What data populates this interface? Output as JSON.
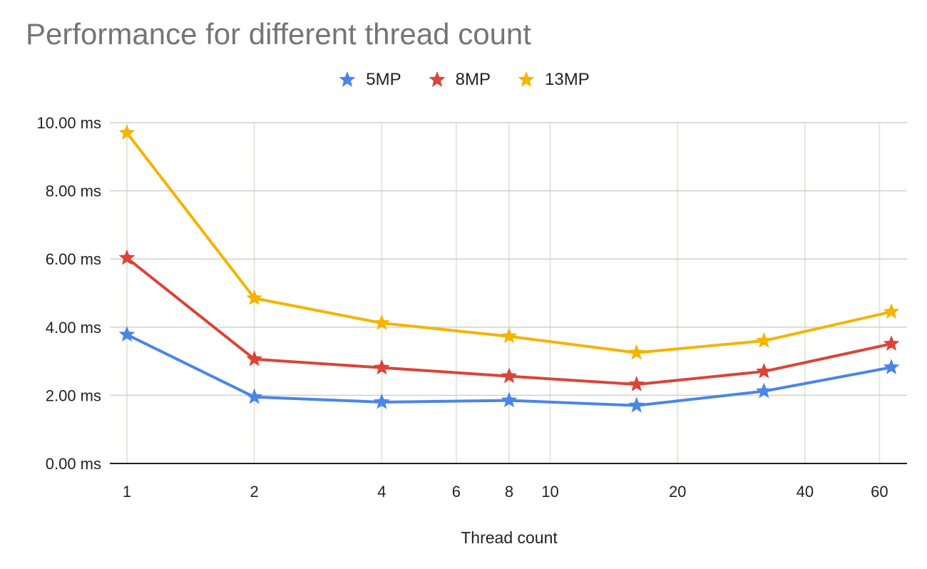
{
  "chart_data": {
    "type": "line",
    "title": "Performance for different thread count",
    "xlabel": "Thread count",
    "ylabel": "",
    "x_scale": "log",
    "x": [
      1,
      2,
      4,
      8,
      16,
      32,
      64
    ],
    "x_ticks": [
      1,
      2,
      4,
      6,
      8,
      10,
      20,
      40,
      60
    ],
    "x_tick_labels": [
      "1",
      "2",
      "4",
      "6",
      "8",
      "10",
      "20",
      "40",
      "60"
    ],
    "ylim": [
      0,
      10
    ],
    "y_ticks": [
      0,
      2,
      4,
      6,
      8,
      10
    ],
    "y_tick_labels": [
      "0.00 ms",
      "2.00 ms",
      "4.00 ms",
      "6.00 ms",
      "8.00 ms",
      "10.00 ms"
    ],
    "grid": true,
    "legend_position": "top",
    "marker": "star",
    "series": [
      {
        "name": "5MP",
        "color": "#4a86e8",
        "values": [
          3.78,
          1.95,
          1.8,
          1.85,
          1.7,
          2.12,
          2.82
        ]
      },
      {
        "name": "8MP",
        "color": "#db4437",
        "values": [
          6.03,
          3.06,
          2.81,
          2.56,
          2.32,
          2.7,
          3.51
        ]
      },
      {
        "name": "13MP",
        "color": "#f4b400",
        "values": [
          9.7,
          4.85,
          4.12,
          3.73,
          3.25,
          3.6,
          4.45
        ]
      }
    ]
  }
}
